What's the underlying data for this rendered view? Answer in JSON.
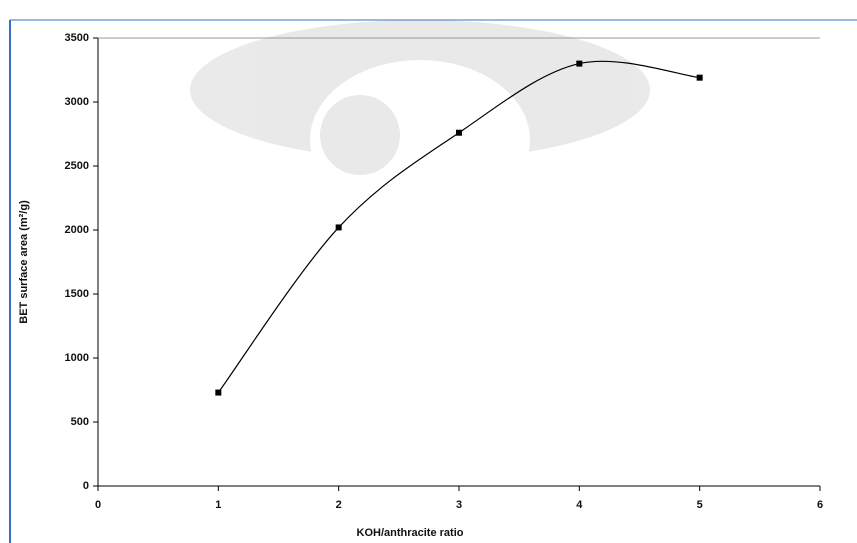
{
  "chart_data": {
    "type": "line",
    "x_label": "KOH/anthracite ratio",
    "y_label": "BET surface area (m²/g)",
    "x": [
      1,
      2,
      3,
      4,
      5
    ],
    "values": [
      730,
      2020,
      2760,
      3300,
      3190
    ],
    "color": "#000000",
    "smooth": true,
    "markers": true,
    "xlim": [
      0,
      6
    ],
    "xticks": [
      0,
      1,
      2,
      3,
      4,
      5,
      6
    ],
    "ylim": [
      0,
      3500
    ],
    "yticks": [
      0,
      500,
      1000,
      1500,
      2000,
      2500,
      3000,
      3500
    ],
    "grid": false
  }
}
